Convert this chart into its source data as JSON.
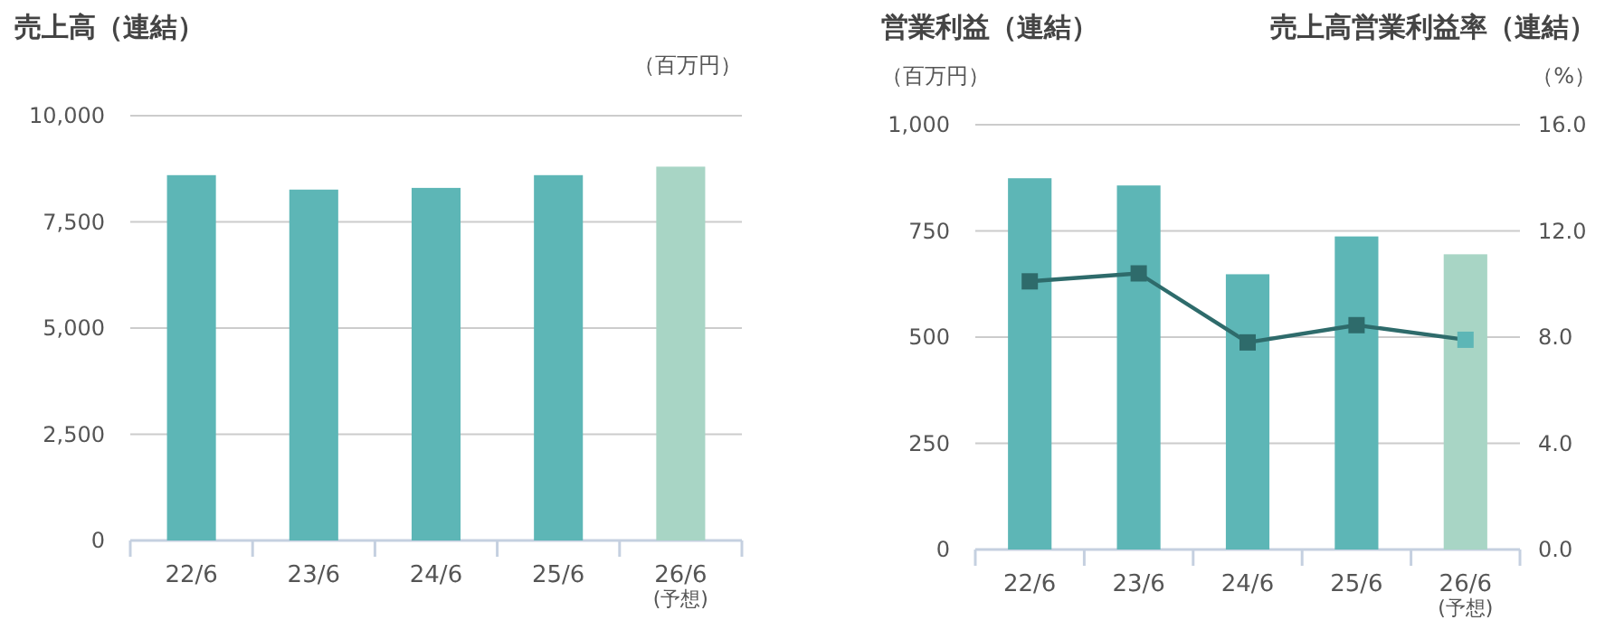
{
  "chart_data": [
    {
      "type": "bar",
      "title": "売上高（連結）",
      "ylabel": "（百万円）",
      "categories": [
        "22/6",
        "23/6",
        "24/6",
        "25/6",
        "26/6 (予想)"
      ],
      "values": [
        8600,
        8260,
        8300,
        8600,
        8800
      ],
      "colors": [
        "#5db6b6",
        "#5db6b6",
        "#5db6b6",
        "#5db6b6",
        "#a8d5c5"
      ],
      "ylim": [
        0,
        10000
      ],
      "yticks": [
        0,
        {
          "value": 2500,
          "label": "2,500"
        },
        {
          "value": 5000,
          "label": "5,000"
        },
        {
          "value": 7500,
          "label": "7,500"
        },
        {
          "value": 10000,
          "label": "10,000"
        }
      ],
      "grid": "y"
    },
    {
      "type": "bar",
      "title": "営業利益（連結）",
      "ylabel": "（百万円）",
      "y2label": "（%）",
      "annotations": [
        "売上高営業利益率（連結）"
      ],
      "categories": [
        "22/6",
        "23/6",
        "24/6",
        "25/6",
        "26/6 (予想)"
      ],
      "series": [
        {
          "colors": [
            "#5db6b6",
            "#5db6b6",
            "#5db6b6",
            "#5db6b6",
            "#a8d5c5"
          ],
          "values": [
            874,
            857,
            648,
            737,
            695
          ]
        },
        {
          "type": "line",
          "axis": "y2",
          "color": "#2e6b6b",
          "colors": [
            "#2e6b6b",
            "#2e6b6b",
            "#2e6b6b",
            "#2e6b6b",
            "#5db6b6"
          ],
          "marker": "square",
          "values": [
            10.1,
            10.4,
            7.8,
            8.45,
            7.9
          ]
        }
      ],
      "ylim": [
        0,
        1000
      ],
      "yticks": [
        0,
        250,
        500,
        750,
        {
          "value": 1000,
          "label": "1,000"
        }
      ],
      "y2lim": [
        0,
        16
      ],
      "y2ticks": [
        {
          "value": 0,
          "label": "0.0"
        },
        {
          "value": 4,
          "label": "4.0"
        },
        {
          "value": 8,
          "label": "8.0"
        },
        {
          "value": 12,
          "label": "12.0"
        },
        {
          "value": 16,
          "label": "16.0"
        }
      ],
      "grid": "y"
    }
  ]
}
